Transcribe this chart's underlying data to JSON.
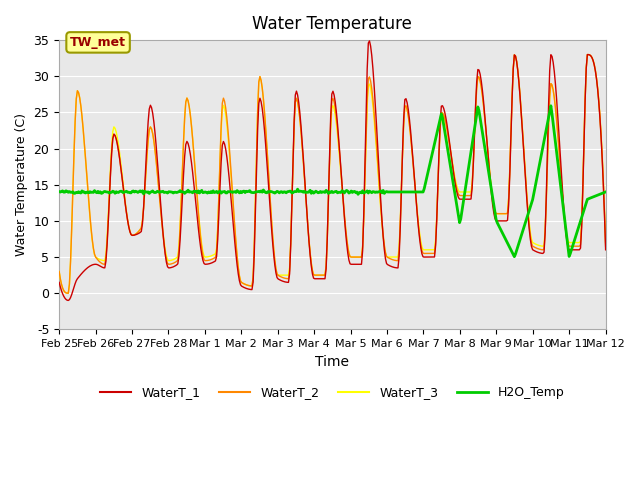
{
  "title": "Water Temperature",
  "ylabel": "Water Temperature (C)",
  "xlabel": "Time",
  "ylim": [
    -5,
    35
  ],
  "yticks": [
    -5,
    0,
    5,
    10,
    15,
    20,
    25,
    30,
    35
  ],
  "xtick_labels": [
    "Feb 25",
    "Feb 26",
    "Feb 27",
    "Feb 28",
    "Mar 1",
    "Mar 2",
    "Mar 3",
    "Mar 4",
    "Mar 5",
    "Mar 6",
    "Mar 7",
    "Mar 8",
    "Mar 9",
    "Mar 10",
    "Mar 11",
    "Mar 12"
  ],
  "colors": {
    "WaterT_1": "#cc0000",
    "WaterT_2": "#ff8800",
    "WaterT_3": "#ffff00",
    "H2O_Temp": "#00cc00"
  },
  "legend_labels": [
    "WaterT_1",
    "WaterT_2",
    "WaterT_3",
    "H2O_Temp"
  ],
  "annotation_text": "TW_met",
  "annotation_bg": "#ffff99",
  "annotation_border": "#999900",
  "bg_color": "#e8e8e8",
  "plot_bg": "#f0f0f0"
}
